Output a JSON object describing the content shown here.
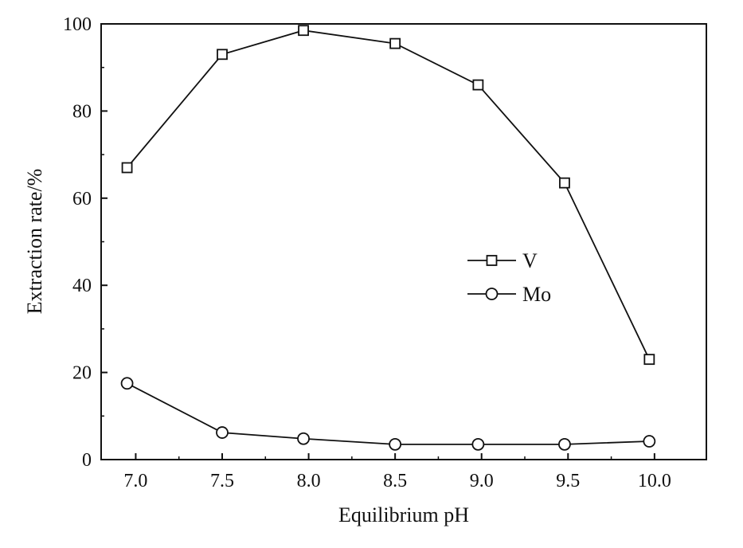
{
  "chart_data": {
    "type": "line",
    "xlabel": "Equilibrium pH",
    "ylabel": "Extraction rate/%",
    "xlim": [
      6.8,
      10.3
    ],
    "ylim": [
      0,
      100
    ],
    "xticks": [
      7.0,
      7.5,
      8.0,
      8.5,
      9.0,
      9.5,
      10.0
    ],
    "xtick_labels": [
      "7.0",
      "7.5",
      "8.0",
      "8.5",
      "9.0",
      "9.5",
      "10.0"
    ],
    "yticks": [
      0,
      20,
      40,
      60,
      80,
      100
    ],
    "ytick_labels": [
      "0",
      "20",
      "40",
      "60",
      "80",
      "100"
    ],
    "grid": false,
    "legend_position": "center-right",
    "series": [
      {
        "name": "V",
        "marker": "square",
        "color": "#111111",
        "x": [
          6.95,
          7.5,
          7.97,
          8.5,
          8.98,
          9.48,
          9.97
        ],
        "y": [
          67,
          93,
          98.5,
          95.5,
          86,
          63.5,
          23
        ]
      },
      {
        "name": "Mo",
        "marker": "circle",
        "color": "#111111",
        "x": [
          6.95,
          7.5,
          7.97,
          8.5,
          8.98,
          9.48,
          9.97
        ],
        "y": [
          17.5,
          6.2,
          4.8,
          3.5,
          3.5,
          3.5,
          4.2
        ]
      }
    ]
  }
}
